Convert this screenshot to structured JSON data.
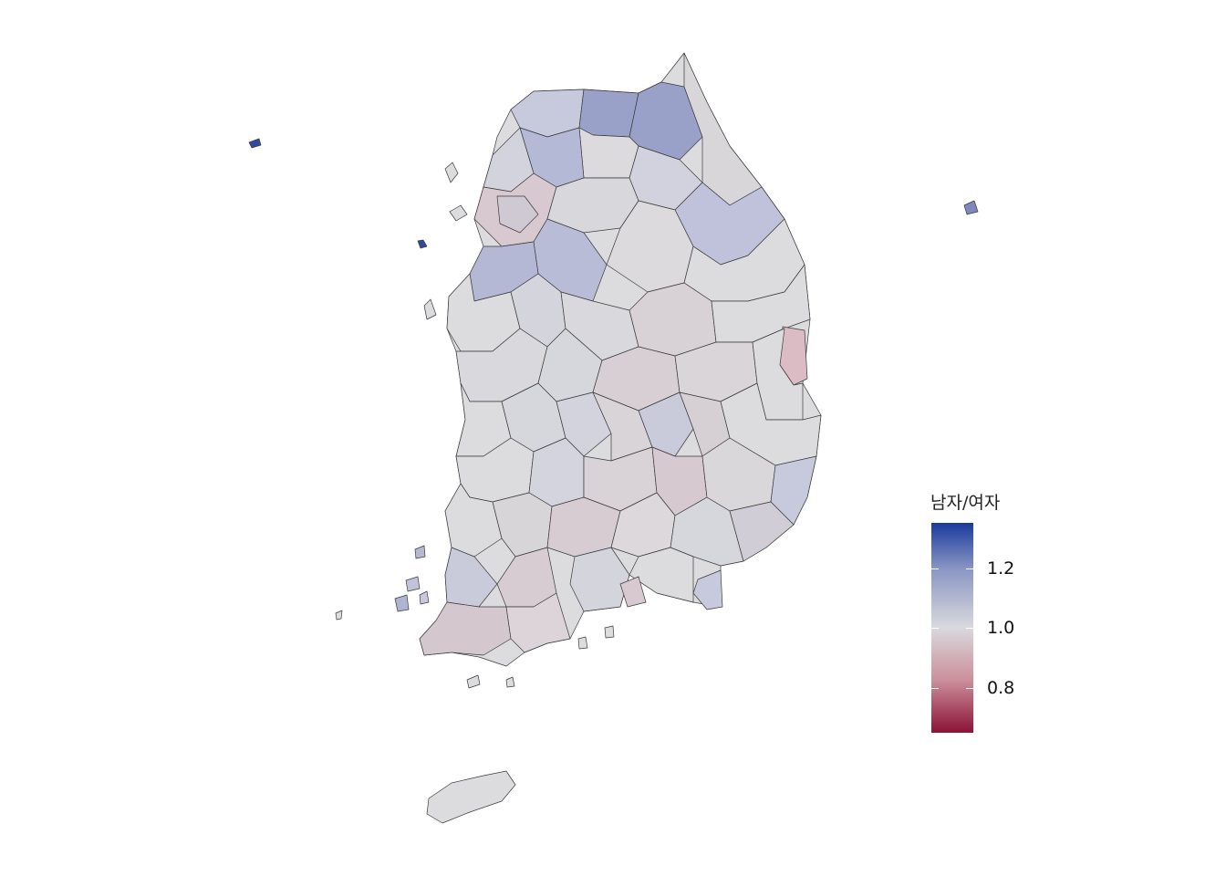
{
  "legend": {
    "title": "남자/여자",
    "min": 0.65,
    "max": 1.35,
    "ticks": [
      {
        "value": 1.2,
        "label": "1.2"
      },
      {
        "value": 1.0,
        "label": "1.0"
      },
      {
        "value": 0.8,
        "label": "0.8"
      }
    ],
    "colors": {
      "high": "#1a3a9c",
      "mid": "#d9d9dd",
      "low": "#8a1236"
    }
  }
}
